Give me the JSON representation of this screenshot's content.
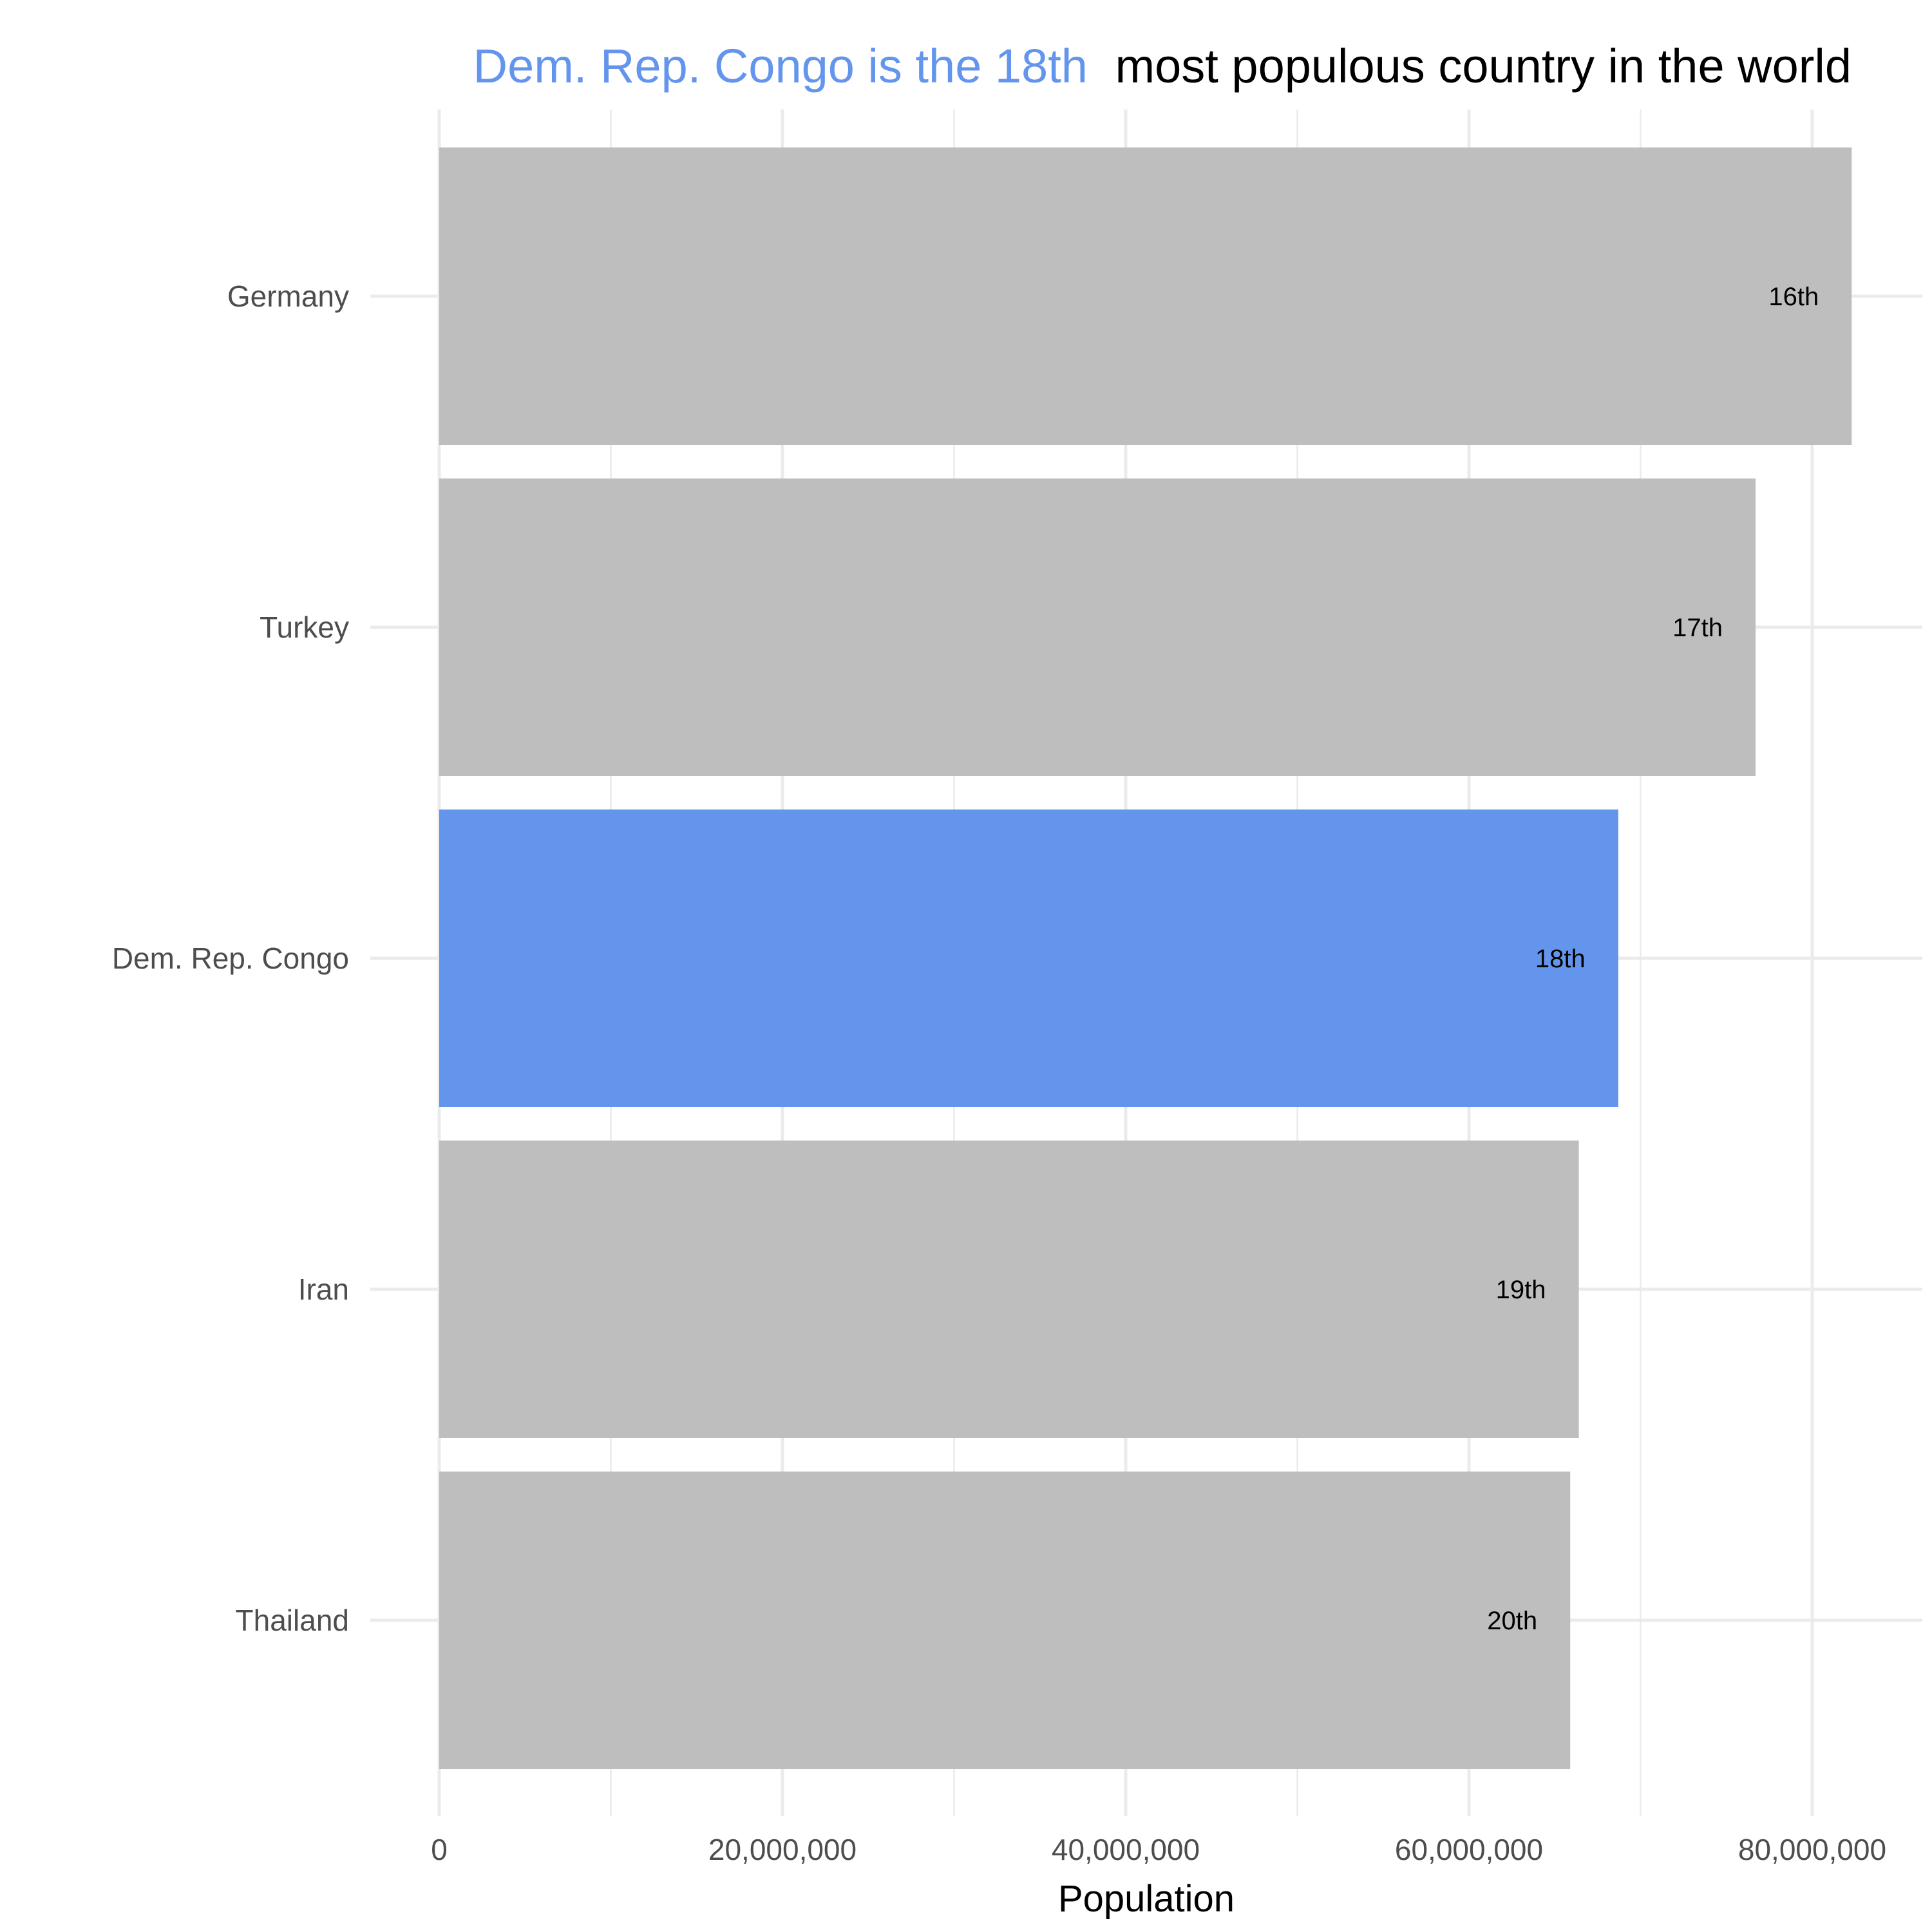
{
  "chart_data": {
    "type": "bar",
    "orientation": "horizontal",
    "title": {
      "highlight": "Dem. Rep. Congo is the 18th",
      "rest": "most populous country in the world"
    },
    "xlabel": "Population",
    "ylabel": "",
    "xlim": [
      0,
      86000000
    ],
    "x_ticks": [
      0,
      20000000,
      40000000,
      60000000,
      80000000
    ],
    "x_tick_labels": [
      "0",
      "20,000,000",
      "40,000,000",
      "60,000,000",
      "80,000,000"
    ],
    "categories": [
      "Germany",
      "Turkey",
      "Dem. Rep. Congo",
      "Iran",
      "Thailand"
    ],
    "values": [
      82300000,
      76700000,
      68700000,
      66400000,
      65900000
    ],
    "bar_labels": [
      "16th",
      "17th",
      "18th",
      "19th",
      "20th"
    ],
    "highlight_category": "Dem. Rep. Congo",
    "grid": true,
    "legend": "none",
    "colors": {
      "highlight": "#6495ed",
      "default": "#bebebe",
      "title_rest": "#000000"
    }
  }
}
